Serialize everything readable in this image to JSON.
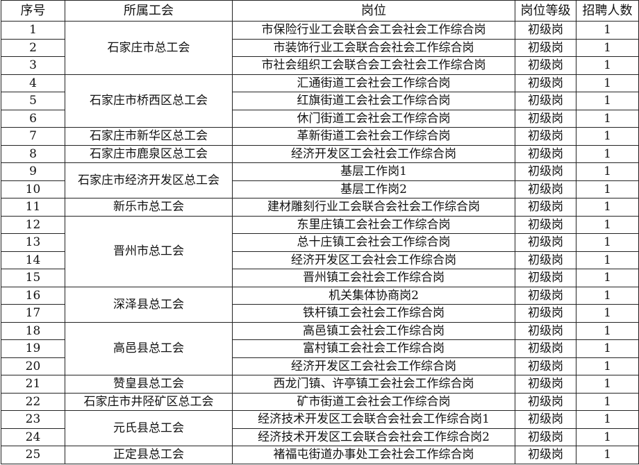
{
  "headers": [
    "序号",
    "所属工会",
    "岗位",
    "岗位等级",
    "招聘人数"
  ],
  "groups": [
    {
      "union": "石家庄市总工会",
      "rows": 3
    },
    {
      "union": "石家庄市桥西区总工会",
      "rows": 3
    },
    {
      "union": "石家庄市新华区总工会",
      "rows": 1
    },
    {
      "union": "石家庄市鹿泉区总工会",
      "rows": 1
    },
    {
      "union": "石家庄市经济开发区总工会",
      "rows": 2
    },
    {
      "union": "新乐市总工会",
      "rows": 1
    },
    {
      "union": "晋州市总工会",
      "rows": 4
    },
    {
      "union": "深泽县总工会",
      "rows": 2
    },
    {
      "union": "高邑县总工会",
      "rows": 3
    },
    {
      "union": "赞皇县总工会",
      "rows": 1
    },
    {
      "union": "石家庄市井陉矿区总工会",
      "rows": 1
    },
    {
      "union": "元氏县总工会",
      "rows": 2
    },
    {
      "union": "正定县总工会",
      "rows": 1
    }
  ],
  "rows": [
    {
      "no": "1",
      "post": "市保险行业工会联合会工会社会工作综合岗",
      "level": "初级岗",
      "count": "1"
    },
    {
      "no": "2",
      "post": "市装饰行业工会联合会社会工作综合岗",
      "level": "初级岗",
      "count": "1"
    },
    {
      "no": "3",
      "post": "市社会组织工会联合会工会社会工作综合岗",
      "level": "初级岗",
      "count": "1"
    },
    {
      "no": "4",
      "post": "汇通街道工会社会工作综合岗",
      "level": "初级岗",
      "count": "1"
    },
    {
      "no": "5",
      "post": "红旗街道工会社会工作综合岗",
      "level": "初级岗",
      "count": "1"
    },
    {
      "no": "6",
      "post": "休门街道工会社会工作综合岗",
      "level": "初级岗",
      "count": "1"
    },
    {
      "no": "7",
      "post": "革新街道工会社会工作综合岗",
      "level": "初级岗",
      "count": "1"
    },
    {
      "no": "8",
      "post": "经济开发区工会社会工作综合岗",
      "level": "初级岗",
      "count": "1"
    },
    {
      "no": "9",
      "post": "基层工作岗1",
      "level": "初级岗",
      "count": "1"
    },
    {
      "no": "10",
      "post": "基层工作岗2",
      "level": "初级岗",
      "count": "1"
    },
    {
      "no": "11",
      "post": "建材雕刻行业工会联合会社会工作综合岗",
      "level": "初级岗",
      "count": "1"
    },
    {
      "no": "12",
      "post": "东里庄镇工会社会工作综合岗",
      "level": "初级岗",
      "count": "1"
    },
    {
      "no": "13",
      "post": "总十庄镇工会社会工作综合岗",
      "level": "初级岗",
      "count": "1"
    },
    {
      "no": "14",
      "post": "经济开发区工会社会工作综合岗",
      "level": "初级岗",
      "count": "1"
    },
    {
      "no": "15",
      "post": "晋州镇工会社会工作综合岗",
      "level": "初级岗",
      "count": "1"
    },
    {
      "no": "16",
      "post": "机关集体协商岗2",
      "level": "初级岗",
      "count": "1"
    },
    {
      "no": "17",
      "post": "铁杆镇工会社会工作综合岗",
      "level": "初级岗",
      "count": "1"
    },
    {
      "no": "18",
      "post": "高邑镇工会社会工作综合岗",
      "level": "初级岗",
      "count": "1"
    },
    {
      "no": "19",
      "post": "富村镇工会社会工作综合岗",
      "level": "初级岗",
      "count": "1"
    },
    {
      "no": "20",
      "post": "经济开发区工会社会工作综合岗",
      "level": "初级岗",
      "count": "1"
    },
    {
      "no": "21",
      "post": "西龙门镇、许亭镇工会社会工作综合岗",
      "level": "初级岗",
      "count": "1"
    },
    {
      "no": "22",
      "post": "矿市街道工会社会工作综合岗",
      "level": "初级岗",
      "count": "1"
    },
    {
      "no": "23",
      "post": "经济技术开发区工会联合会社会工作综合岗1",
      "level": "初级岗",
      "count": "1"
    },
    {
      "no": "24",
      "post": "经济技术开发区工会联合会社会工作综合岗2",
      "level": "初级岗",
      "count": "1"
    },
    {
      "no": "25",
      "post": "褚福屯街道办事处工会社会工作综合岗",
      "level": "初级岗",
      "count": "1"
    }
  ]
}
